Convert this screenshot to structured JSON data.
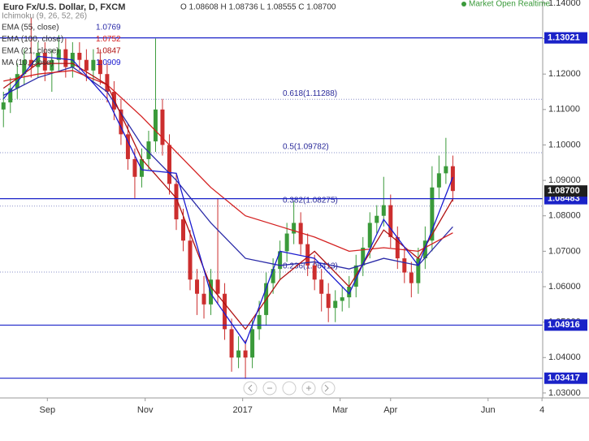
{
  "chart_data": {
    "type": "candlestick",
    "title": "Euro Fx/U.S. Dollar, D, FXCM",
    "ohlc_label": "O 1.08608 H 1.08736 L 1.08555 C 1.08700",
    "status": "Market Open Realtime",
    "ichimoku": "Ichimoku (9, 26, 52, 26)",
    "up_color": "#3a9a3a",
    "down_color": "#cc2e2e",
    "categories": [
      null,
      null,
      null,
      null,
      null,
      null,
      null,
      null,
      null,
      null,
      null,
      null,
      null,
      null,
      null,
      null,
      null,
      null,
      null,
      null,
      null,
      null,
      null,
      null,
      null,
      null,
      null,
      null,
      null,
      null,
      null,
      null,
      null,
      null,
      null,
      null,
      null,
      null,
      null,
      null,
      null,
      null,
      null,
      null,
      null,
      null,
      null,
      null,
      null,
      null,
      null,
      null,
      null,
      null,
      null,
      null,
      null,
      null,
      null,
      null,
      null,
      null,
      null,
      null,
      null,
      null
    ],
    "open": [
      1.11,
      1.112,
      1.116,
      1.12,
      1.124,
      1.122,
      1.126,
      1.121,
      1.124,
      1.127,
      1.122,
      1.126,
      1.124,
      1.121,
      1.124,
      1.12,
      1.115,
      1.11,
      1.103,
      1.096,
      1.091,
      1.096,
      1.101,
      1.11,
      1.1,
      1.089,
      1.079,
      1.073,
      1.062,
      1.058,
      1.055,
      1.062,
      1.058,
      1.048,
      1.04,
      1.042,
      1.04,
      1.048,
      1.052,
      1.061,
      1.065,
      1.07,
      1.075,
      1.078,
      1.072,
      1.066,
      1.062,
      1.058,
      1.054,
      1.056,
      1.057,
      1.06,
      1.066,
      1.071,
      1.078,
      1.08,
      1.083,
      1.074,
      1.068,
      1.064,
      1.061,
      1.068,
      1.073,
      1.088,
      1.092,
      1.094
    ],
    "high": [
      1.115,
      1.119,
      1.123,
      1.127,
      1.136,
      1.129,
      1.129,
      1.127,
      1.131,
      1.13,
      1.129,
      1.129,
      1.127,
      1.127,
      1.127,
      1.123,
      1.118,
      1.113,
      1.106,
      1.099,
      1.099,
      1.104,
      1.13,
      1.113,
      1.103,
      1.092,
      1.082,
      1.076,
      1.065,
      1.063,
      1.065,
      1.085,
      1.061,
      1.051,
      1.046,
      1.045,
      1.051,
      1.056,
      1.064,
      1.068,
      1.073,
      1.078,
      1.084,
      1.081,
      1.075,
      1.069,
      1.065,
      1.061,
      1.059,
      1.06,
      1.063,
      1.069,
      1.074,
      1.081,
      1.083,
      1.091,
      1.086,
      1.077,
      1.071,
      1.067,
      1.071,
      1.077,
      1.094,
      1.097,
      1.102,
      1.097
    ],
    "low": [
      1.105,
      1.109,
      1.113,
      1.117,
      1.119,
      1.119,
      1.118,
      1.115,
      1.121,
      1.119,
      1.119,
      1.121,
      1.118,
      1.118,
      1.117,
      1.112,
      1.107,
      1.1,
      1.093,
      1.085,
      1.088,
      1.093,
      1.098,
      1.097,
      1.086,
      1.076,
      1.07,
      1.059,
      1.052,
      1.051,
      1.052,
      1.055,
      1.045,
      1.036,
      1.037,
      1.034,
      1.037,
      1.045,
      1.049,
      1.058,
      1.062,
      1.067,
      1.072,
      1.069,
      1.063,
      1.059,
      1.053,
      1.05,
      1.05,
      1.053,
      1.054,
      1.057,
      1.063,
      1.068,
      1.075,
      1.077,
      1.071,
      1.065,
      1.061,
      1.057,
      1.058,
      1.065,
      1.07,
      1.085,
      1.089,
      1.084
    ],
    "close": [
      1.112,
      1.116,
      1.12,
      1.124,
      1.122,
      1.126,
      1.121,
      1.124,
      1.127,
      1.122,
      1.126,
      1.124,
      1.121,
      1.124,
      1.12,
      1.115,
      1.11,
      1.103,
      1.096,
      1.091,
      1.096,
      1.101,
      1.11,
      1.1,
      1.089,
      1.079,
      1.073,
      1.062,
      1.058,
      1.055,
      1.062,
      1.058,
      1.048,
      1.04,
      1.042,
      1.04,
      1.048,
      1.052,
      1.061,
      1.065,
      1.07,
      1.075,
      1.078,
      1.072,
      1.066,
      1.062,
      1.058,
      1.054,
      1.056,
      1.057,
      1.06,
      1.066,
      1.071,
      1.078,
      1.08,
      1.083,
      1.074,
      1.068,
      1.064,
      1.061,
      1.068,
      1.073,
      1.088,
      1.092,
      1.094,
      1.087
    ],
    "series": [
      {
        "name": "EMA (55, close)",
        "color": "#2a2aa8",
        "last": 1.0769,
        "x": [
          0,
          5,
          10,
          15,
          20,
          25,
          30,
          35,
          40,
          45,
          50,
          55,
          60,
          65
        ],
        "values": [
          1.114,
          1.119,
          1.122,
          1.115,
          1.1,
          1.09,
          1.078,
          1.068,
          1.066,
          1.067,
          1.065,
          1.068,
          1.066,
          1.0769
        ]
      },
      {
        "name": "EMA (100, close)",
        "color": "#d42020",
        "last": 1.0752,
        "x": [
          0,
          5,
          10,
          15,
          20,
          25,
          30,
          35,
          40,
          45,
          50,
          55,
          60,
          65
        ],
        "values": [
          1.118,
          1.12,
          1.121,
          1.117,
          1.108,
          1.098,
          1.088,
          1.08,
          1.077,
          1.074,
          1.07,
          1.071,
          1.07,
          1.0752
        ]
      },
      {
        "name": "EMA (21, close)",
        "color": "#b01010",
        "last": 1.0847,
        "x": [
          0,
          5,
          10,
          15,
          20,
          25,
          30,
          35,
          40,
          45,
          50,
          55,
          60,
          65
        ],
        "values": [
          1.116,
          1.123,
          1.123,
          1.117,
          1.096,
          1.085,
          1.06,
          1.048,
          1.062,
          1.07,
          1.06,
          1.076,
          1.068,
          1.0847
        ]
      },
      {
        "name": "MA (10, close)",
        "color": "#1a1ad0",
        "last": 1.0909,
        "x": [
          0,
          5,
          10,
          15,
          20,
          25,
          30,
          35,
          40,
          45,
          50,
          55,
          60,
          65
        ],
        "values": [
          1.113,
          1.125,
          1.124,
          1.113,
          1.093,
          1.092,
          1.058,
          1.044,
          1.07,
          1.068,
          1.058,
          1.079,
          1.066,
          1.0909
        ]
      }
    ],
    "levels": [
      {
        "value": 1.13021,
        "label": "1.13021",
        "color": "#1a22c8"
      },
      {
        "value": 1.08483,
        "label": "1.08483",
        "color": "#1a22c8"
      },
      {
        "value": 1.04916,
        "label": "1.04916",
        "color": "#1a22c8"
      },
      {
        "value": 1.03417,
        "label": "1.03417",
        "color": "#1a22c8"
      }
    ],
    "last_price": {
      "value": 1.087,
      "label": "1.08700",
      "color": "#1f1f1f"
    },
    "fib_levels": [
      {
        "value": 1.11288,
        "label": "0.618(1.11288)"
      },
      {
        "value": 1.09782,
        "label": "0.5(1.09782)"
      },
      {
        "value": 1.08275,
        "label": "0.382(1.08275)"
      },
      {
        "value": 1.06413,
        "label": "0.236(1.06413)"
      }
    ],
    "ylim": [
      1.0286,
      1.1409
    ],
    "yticks": [
      {
        "value": 1.03,
        "label": "1.03000"
      },
      {
        "value": 1.04,
        "label": "1.04000"
      },
      {
        "value": 1.05,
        "label": "1.05000"
      },
      {
        "value": 1.06,
        "label": "1.06000"
      },
      {
        "value": 1.07,
        "label": "1.07000"
      },
      {
        "value": 1.08,
        "label": "1.08000"
      },
      {
        "value": 1.09,
        "label": "1.09000"
      },
      {
        "value": 1.1,
        "label": "1.10000"
      },
      {
        "value": 1.11,
        "label": "1.11000"
      },
      {
        "value": 1.12,
        "label": "1.12000"
      },
      {
        "value": 1.13,
        "label": "1.13000"
      },
      {
        "value": 1.14,
        "label": "1.14000"
      }
    ],
    "xlim": [
      -0.5,
      78
    ],
    "xticks": [
      {
        "value": 6.35,
        "label": "Sep"
      },
      {
        "value": 20.5,
        "label": "Nov"
      },
      {
        "value": 34.6,
        "label": "2017"
      },
      {
        "value": 48.7,
        "label": "Mar"
      },
      {
        "value": 56,
        "label": "Apr"
      },
      {
        "value": 70.1,
        "label": "Jun"
      },
      {
        "value": 77.9,
        "label": "4"
      }
    ]
  }
}
